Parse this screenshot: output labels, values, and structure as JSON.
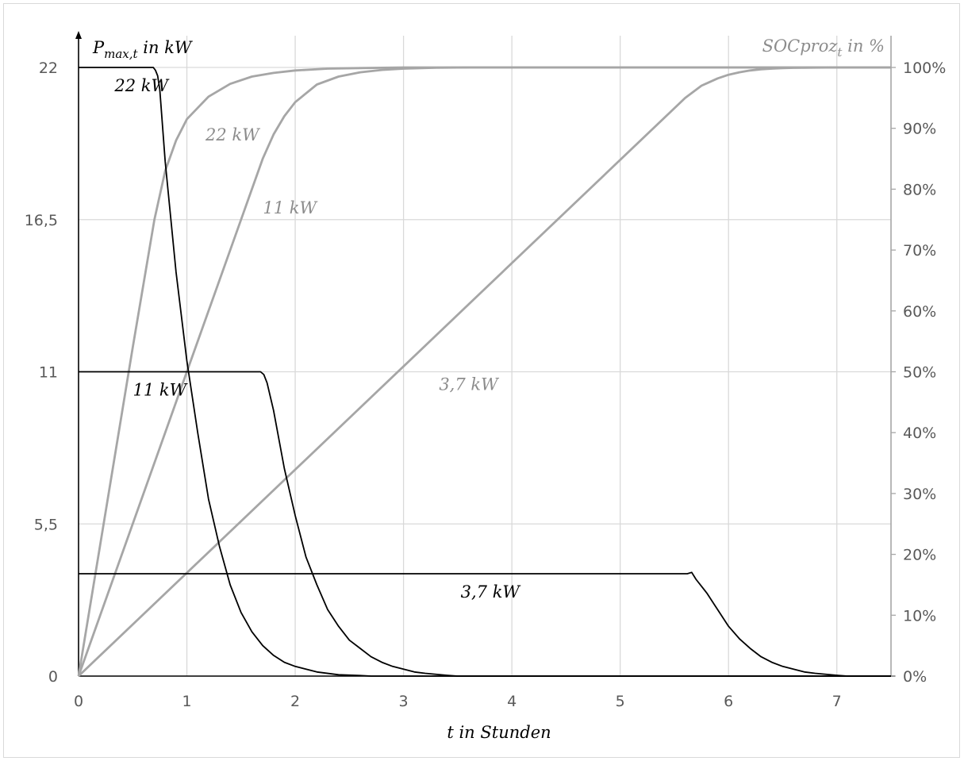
{
  "chart_data": {
    "type": "line",
    "left_axis": {
      "label_main": "P",
      "label_sub": "max,t",
      "label_rest": " in kW",
      "ticks": [
        "0",
        "5,5",
        "11",
        "16,5",
        "22"
      ],
      "tick_values": [
        0,
        5.5,
        11,
        16.5,
        22
      ],
      "ylim": [
        0,
        22
      ]
    },
    "right_axis": {
      "label_main": "SOCproz",
      "label_sub": "t",
      "label_rest": " in %",
      "ticks": [
        "0%",
        "10%",
        "20%",
        "30%",
        "40%",
        "50%",
        "60%",
        "70%",
        "80%",
        "90%",
        "100%"
      ],
      "ylim": [
        0,
        100
      ]
    },
    "x_axis": {
      "label": "t in Stunden",
      "ticks": [
        "0",
        "1",
        "2",
        "3",
        "4",
        "5",
        "6",
        "7"
      ],
      "tick_values": [
        0,
        1,
        2,
        3,
        4,
        5,
        6,
        7
      ],
      "xlim": [
        0,
        7.5
      ]
    },
    "grid": true,
    "power_series": [
      {
        "label": "22 kW",
        "color": "#000000",
        "plateau": 22,
        "x": [
          0,
          0.69,
          0.71,
          0.73,
          0.75,
          0.8,
          0.9,
          1.0,
          1.1,
          1.2,
          1.3,
          1.4,
          1.5,
          1.6,
          1.7,
          1.8,
          1.9,
          2.0,
          2.1,
          2.2,
          2.4,
          2.6,
          2.7,
          7.5
        ],
        "y": [
          22,
          22,
          21.9,
          21.7,
          21.2,
          18.6,
          14.6,
          11.4,
          8.8,
          6.4,
          4.7,
          3.3,
          2.3,
          1.6,
          1.1,
          0.75,
          0.5,
          0.35,
          0.25,
          0.15,
          0.05,
          0.02,
          0,
          0
        ]
      },
      {
        "label": "11 kW",
        "color": "#000000",
        "plateau": 11,
        "x": [
          0,
          1.68,
          1.71,
          1.74,
          1.8,
          1.9,
          2.0,
          2.1,
          2.2,
          2.3,
          2.4,
          2.5,
          2.6,
          2.7,
          2.8,
          2.9,
          3.0,
          3.1,
          3.2,
          3.4,
          3.5,
          7.5
        ],
        "y": [
          11,
          11,
          10.9,
          10.6,
          9.6,
          7.5,
          5.8,
          4.3,
          3.3,
          2.4,
          1.8,
          1.3,
          1.0,
          0.7,
          0.5,
          0.35,
          0.25,
          0.15,
          0.1,
          0.03,
          0,
          0
        ]
      },
      {
        "label": "3,7 kW",
        "color": "#000000",
        "plateau": 3.7,
        "x": [
          0,
          5.62,
          5.66,
          5.7,
          5.8,
          5.9,
          6.0,
          6.1,
          6.2,
          6.3,
          6.4,
          6.5,
          6.6,
          6.7,
          6.8,
          7.0,
          7.1,
          7.5
        ],
        "y": [
          3.7,
          3.7,
          3.75,
          3.5,
          3.0,
          2.4,
          1.8,
          1.35,
          1.0,
          0.7,
          0.5,
          0.35,
          0.25,
          0.15,
          0.1,
          0.03,
          0,
          0
        ]
      }
    ],
    "soc_series": [
      {
        "label": "22 kW",
        "color": "#a6a6a6",
        "x": [
          0,
          0.5,
          0.7,
          0.8,
          0.9,
          1.0,
          1.2,
          1.4,
          1.6,
          1.8,
          2.0,
          2.3,
          2.6,
          3.0,
          3.5,
          7.5
        ],
        "y": [
          0,
          54,
          75,
          83,
          88,
          91.5,
          95.2,
          97.3,
          98.5,
          99.1,
          99.5,
          99.8,
          99.9,
          100,
          100,
          100
        ]
      },
      {
        "label": "11 kW",
        "color": "#a6a6a6",
        "x": [
          0,
          1.0,
          1.5,
          1.7,
          1.8,
          1.9,
          2.0,
          2.2,
          2.4,
          2.6,
          2.8,
          3.0,
          3.3,
          3.6,
          4.0,
          7.5
        ],
        "y": [
          0,
          50,
          75,
          85,
          89,
          92,
          94.3,
          97.2,
          98.5,
          99.2,
          99.6,
          99.8,
          99.95,
          100,
          100,
          100
        ]
      },
      {
        "label": "3,7 kW",
        "color": "#a6a6a6",
        "x": [
          0,
          5.6,
          5.75,
          5.9,
          6.0,
          6.1,
          6.2,
          6.3,
          6.4,
          6.5,
          6.6,
          6.8,
          7.0,
          7.2,
          7.5
        ],
        "y": [
          0,
          95,
          97,
          98.2,
          98.8,
          99.2,
          99.5,
          99.7,
          99.8,
          99.88,
          99.93,
          99.97,
          100,
          100,
          100
        ]
      }
    ],
    "annotations": [
      {
        "text": "22 kW",
        "color": "#000000",
        "x": 0.58,
        "y_kw": 22
      },
      {
        "text": "11 kW",
        "color": "#000000",
        "x": 0.75,
        "y_kw": 11
      },
      {
        "text": "3,7 kW",
        "color": "#000000",
        "x": 3.8,
        "y_kw": 3.7
      },
      {
        "text": "22 kW",
        "color": "#8c8c8c",
        "x": 1.42,
        "y_soc": 88
      },
      {
        "text": "11 kW",
        "color": "#8c8c8c",
        "x": 1.95,
        "y_soc": 76
      },
      {
        "text": "3,7 kW",
        "color": "#8c8c8c",
        "x": 3.6,
        "y_soc": 47
      }
    ]
  }
}
